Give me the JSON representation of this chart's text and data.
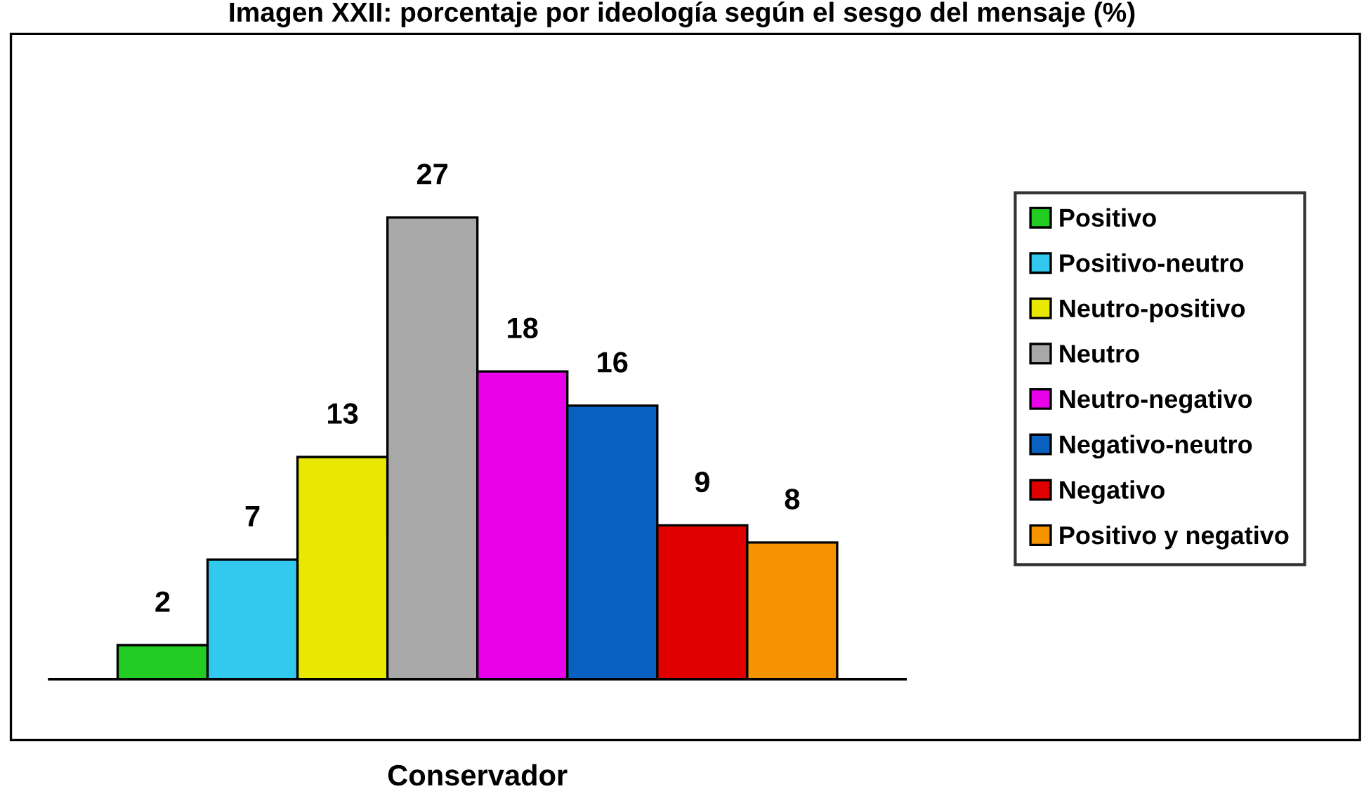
{
  "chart_data": {
    "type": "bar",
    "title": "Imagen XXII: porcentaje por ideología según el sesgo del mensaje (%)",
    "xlabel": "Conservador",
    "categories": [
      null
    ],
    "series": [
      {
        "name": "Positivo",
        "color": "#22cc22",
        "values": [
          2
        ]
      },
      {
        "name": "Positivo-neutro",
        "color": "#33c8ee",
        "values": [
          7
        ]
      },
      {
        "name": "Neutro-positivo",
        "color": "#e8e800",
        "values": [
          13
        ]
      },
      {
        "name": "Neutro",
        "color": "#a8a8a8",
        "values": [
          27
        ]
      },
      {
        "name": "Neutro-negativo",
        "color": "#e800e8",
        "values": [
          18
        ]
      },
      {
        "name": "Negativo-neutro",
        "color": "#0860c0",
        "values": [
          16
        ]
      },
      {
        "name": "Negativo",
        "color": "#e00000",
        "values": [
          9
        ]
      },
      {
        "name": "Positivo y negativo",
        "color": "#f59400",
        "values": [
          8
        ]
      }
    ],
    "data_labels": true,
    "legend": "right",
    "grid": false
  }
}
